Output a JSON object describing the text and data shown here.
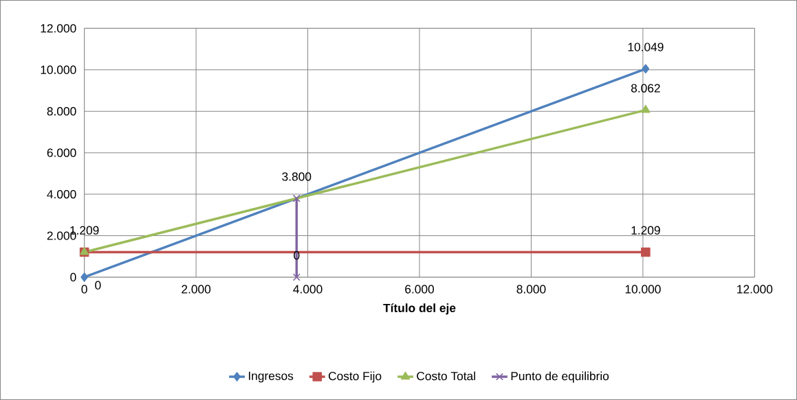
{
  "chart_data": {
    "type": "line",
    "xlabel": "Título del eje",
    "xlim": [
      0,
      12000
    ],
    "xticks": [
      0,
      {
        "value": 2000,
        "label": "2.000"
      },
      {
        "value": 4000,
        "label": "4.000"
      },
      {
        "value": 6000,
        "label": "6.000"
      },
      {
        "value": 8000,
        "label": "8.000"
      },
      {
        "value": 10000,
        "label": "10.000"
      },
      {
        "value": 12000,
        "label": "12.000"
      }
    ],
    "ylim": [
      0,
      12000
    ],
    "yticks": [
      0,
      {
        "value": 2000,
        "label": "2.000"
      },
      {
        "value": 4000,
        "label": "4.000"
      },
      {
        "value": 6000,
        "label": "6.000"
      },
      {
        "value": 8000,
        "label": "8.000"
      },
      {
        "value": 10000,
        "label": "10.000"
      },
      {
        "value": 12000,
        "label": "12.000"
      }
    ],
    "grid": true,
    "legend": "bottom",
    "series": [
      {
        "name": "Ingresos",
        "color": "#4f81bd",
        "marker": "diamond",
        "x": [
          0,
          10049
        ],
        "values": [
          0,
          10049
        ],
        "value_labels": [
          "0",
          "10.049"
        ]
      },
      {
        "name": "Costo Fijo",
        "color": "#c0504d",
        "marker": "square",
        "x": [
          0,
          10049
        ],
        "values": [
          1209,
          1209
        ],
        "value_labels": [
          "1.209",
          "1.209"
        ]
      },
      {
        "name": "Costo Total",
        "color": "#9bbb59",
        "marker": "triangle",
        "x": [
          0,
          10049
        ],
        "values": [
          1209,
          8062
        ],
        "value_labels": [
          null,
          "8.062"
        ]
      },
      {
        "name": "Punto de equilibrio",
        "color": "#8064a2",
        "marker": "cross",
        "x": [
          3800,
          3800
        ],
        "values": [
          3800,
          0
        ],
        "value_labels": [
          "3.800",
          "0"
        ]
      }
    ]
  }
}
